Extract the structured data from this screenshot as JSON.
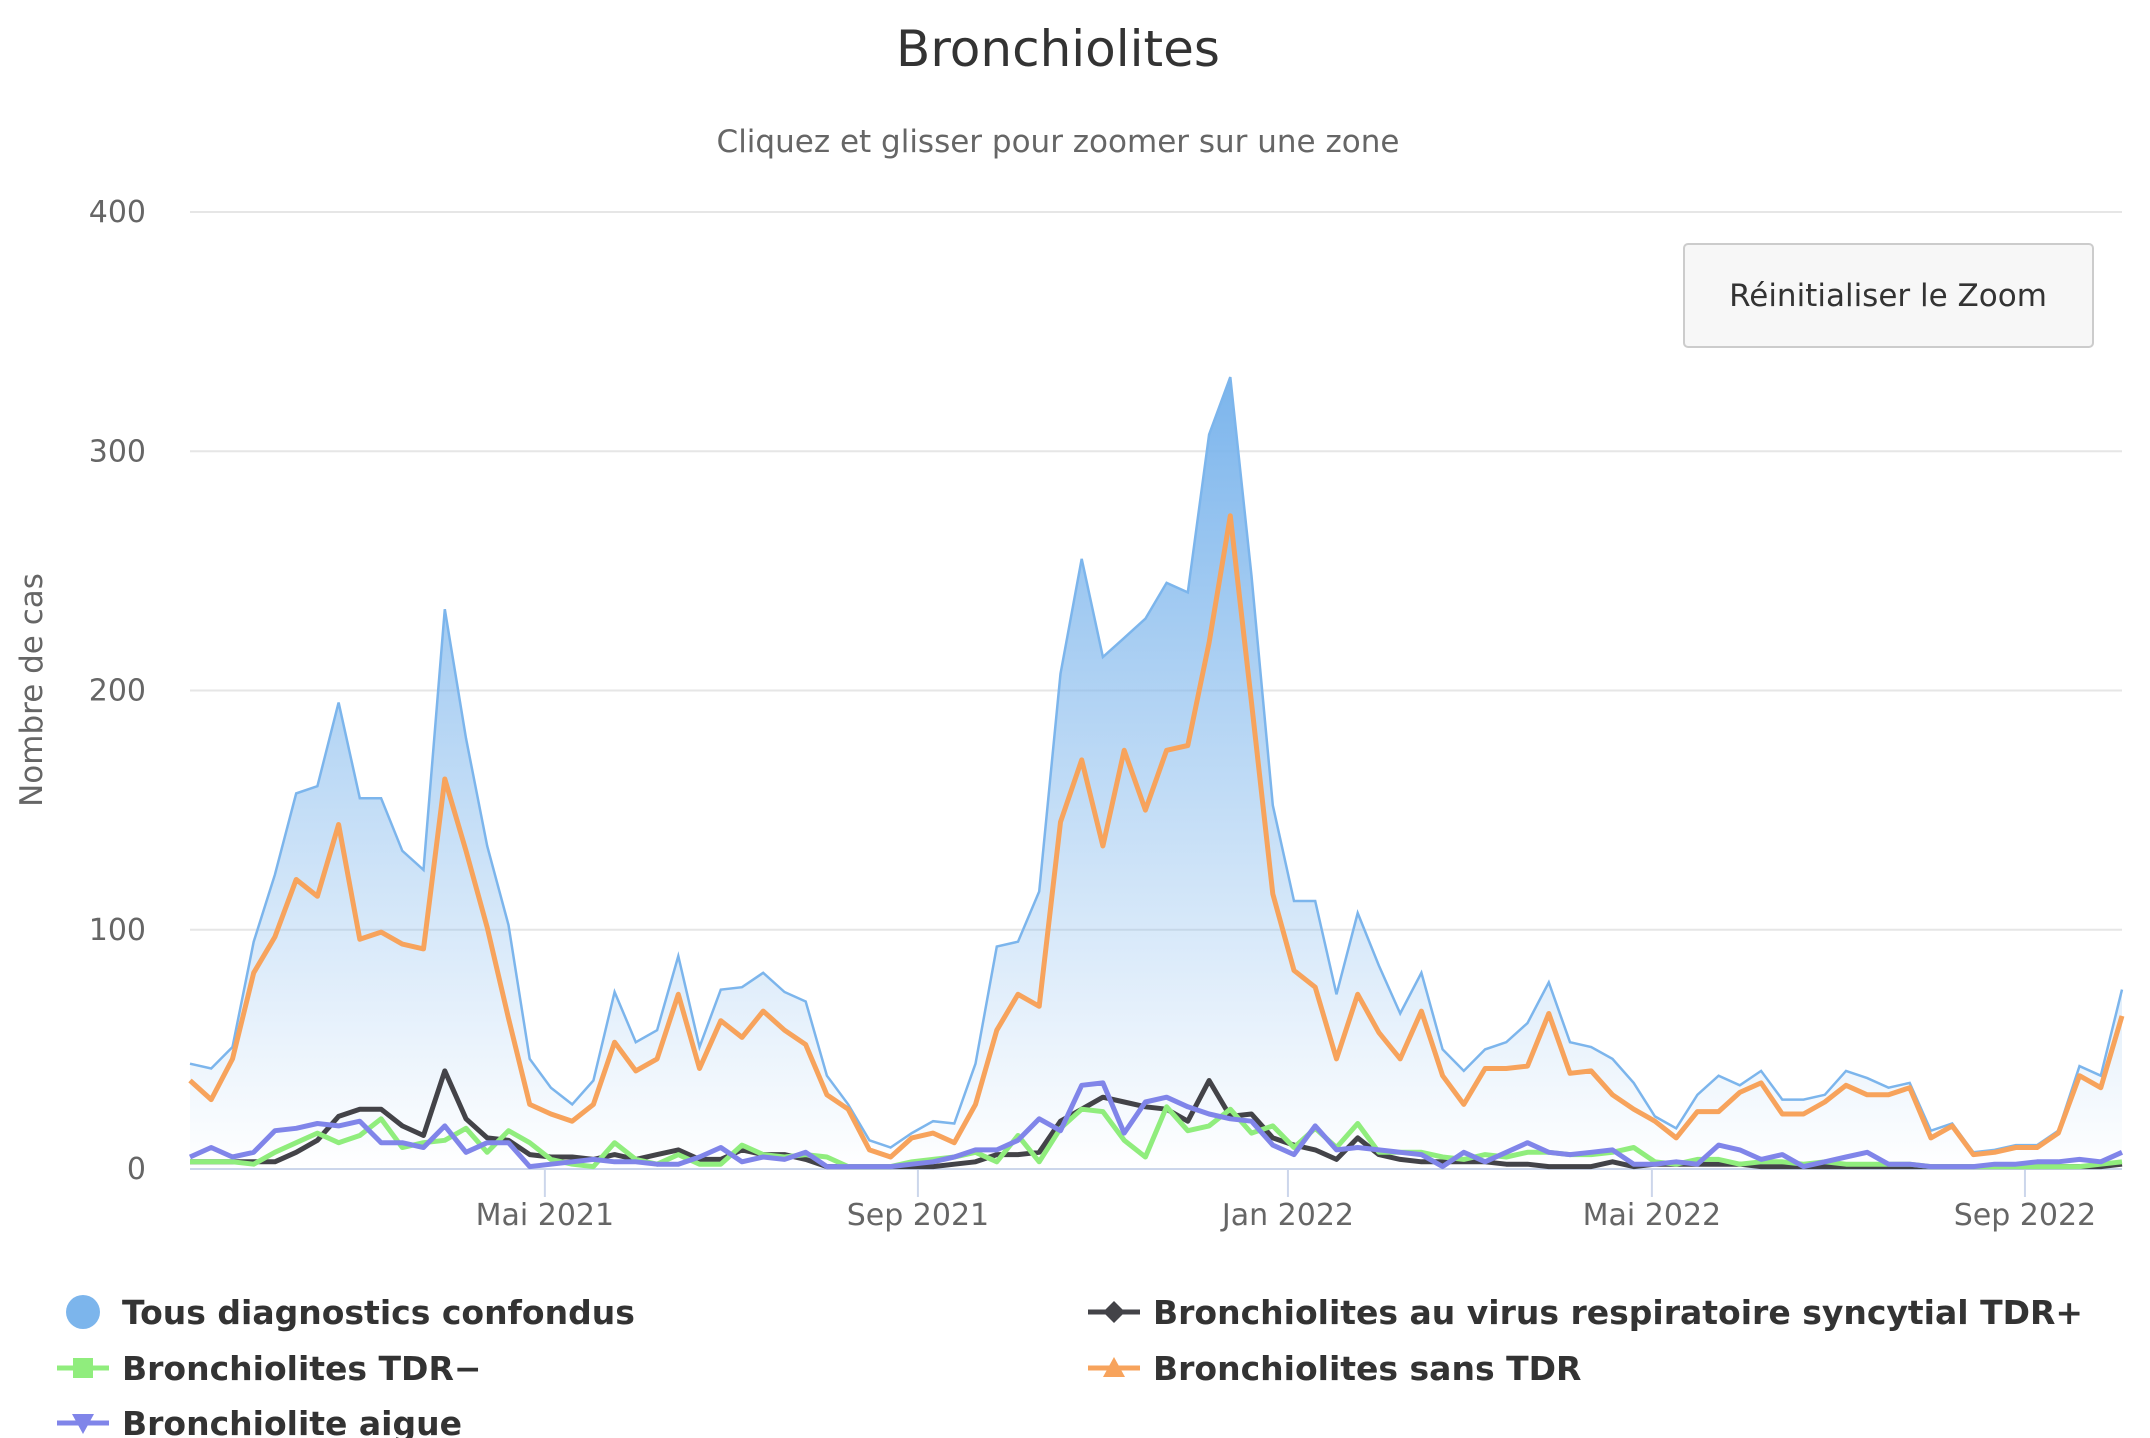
{
  "chart_data": {
    "type": "area",
    "title": "Bronchiolites",
    "subtitle": "Cliquez et glisser pour zoomer sur une zone",
    "ylabel": "Nombre de cas",
    "xlabel": "",
    "ylim": [
      0,
      400
    ],
    "yticks": [
      "0",
      "100",
      "200",
      "300",
      "400"
    ],
    "xticks": [
      {
        "label": "Mai 2021",
        "date": "2021-05-01"
      },
      {
        "label": "Sep 2021",
        "date": "2021-09-01"
      },
      {
        "label": "Jan 2022",
        "date": "2022-01-01"
      },
      {
        "label": "Mai 2022",
        "date": "2022-05-01"
      },
      {
        "label": "Sep 2022",
        "date": "2022-09-01"
      }
    ],
    "x_start": "2021-01-04",
    "x_interval": "weekly",
    "grid": true,
    "legend_position": "bottom",
    "series": [
      {
        "name": "Tous diagnostics confondus",
        "type": "area",
        "color": "#7cb5ec",
        "marker": "circle",
        "values": [
          44,
          42,
          51,
          95,
          123,
          157,
          160,
          195,
          155,
          155,
          133,
          125,
          234,
          180,
          135,
          102,
          46,
          34,
          27,
          37,
          74,
          53,
          58,
          89,
          51,
          75,
          76,
          82,
          74,
          70,
          39,
          27,
          12,
          9,
          15,
          20,
          19,
          44,
          93,
          95,
          116,
          207,
          255,
          214,
          222,
          230,
          245,
          241,
          307,
          331,
          248,
          152,
          112,
          112,
          73,
          107,
          85,
          65,
          82,
          50,
          41,
          50,
          53,
          61,
          78,
          53,
          51,
          46,
          36,
          22,
          17,
          31,
          39,
          35,
          41,
          29,
          29,
          31,
          41,
          38,
          34,
          36,
          16,
          19,
          7,
          8,
          10,
          10,
          16,
          43,
          39,
          75
        ]
      },
      {
        "name": "Bronchiolites au virus respiratoire syncytial TDR+",
        "type": "line",
        "color": "#434348",
        "marker": "diamond",
        "values": [
          3,
          3,
          3,
          3,
          3,
          7,
          12,
          22,
          25,
          25,
          18,
          14,
          41,
          21,
          13,
          12,
          6,
          5,
          5,
          4,
          6,
          4,
          6,
          8,
          4,
          4,
          8,
          6,
          6,
          4,
          1,
          1,
          1,
          1,
          1,
          1,
          2,
          3,
          6,
          6,
          7,
          20,
          25,
          30,
          28,
          26,
          25,
          20,
          37,
          22,
          23,
          13,
          10,
          8,
          4,
          13,
          6,
          4,
          3,
          3,
          3,
          3,
          2,
          2,
          1,
          1,
          1,
          3,
          1,
          2,
          2,
          2,
          2,
          2,
          1,
          1,
          1,
          1,
          1,
          1,
          1,
          1,
          1,
          1,
          1,
          1,
          1,
          1,
          1,
          1,
          1,
          2
        ]
      },
      {
        "name": "Bronchiolites TDR−",
        "type": "line",
        "color": "#90ed7d",
        "marker": "square",
        "values": [
          3,
          3,
          3,
          2,
          7,
          11,
          15,
          11,
          14,
          21,
          9,
          11,
          12,
          17,
          7,
          16,
          11,
          4,
          2,
          1,
          11,
          4,
          2,
          6,
          2,
          2,
          10,
          6,
          5,
          6,
          5,
          1,
          1,
          1,
          3,
          4,
          5,
          7,
          3,
          14,
          3,
          17,
          25,
          24,
          12,
          5,
          26,
          16,
          18,
          25,
          15,
          18,
          9,
          17,
          9,
          19,
          7,
          7,
          7,
          5,
          4,
          6,
          5,
          7,
          7,
          6,
          6,
          7,
          9,
          3,
          2,
          4,
          4,
          2,
          3,
          3,
          2,
          3,
          2,
          2,
          2,
          2,
          1,
          1,
          1,
          1,
          1,
          1,
          1,
          1,
          2,
          3
        ]
      },
      {
        "name": "Bronchiolites sans TDR",
        "type": "line",
        "color": "#f7a35c",
        "marker": "triangle",
        "values": [
          37,
          29,
          46,
          82,
          97,
          121,
          114,
          144,
          96,
          99,
          94,
          92,
          163,
          133,
          101,
          63,
          27,
          23,
          20,
          27,
          53,
          41,
          46,
          73,
          42,
          62,
          55,
          66,
          58,
          52,
          31,
          25,
          8,
          5,
          13,
          15,
          11,
          27,
          58,
          73,
          68,
          145,
          171,
          135,
          175,
          150,
          175,
          177,
          220,
          273,
          195,
          115,
          83,
          76,
          46,
          73,
          57,
          46,
          66,
          39,
          27,
          42,
          42,
          43,
          65,
          40,
          41,
          31,
          25,
          20,
          13,
          24,
          24,
          32,
          36,
          23,
          23,
          28,
          35,
          31,
          31,
          34,
          13,
          18,
          6,
          7,
          9,
          9,
          15,
          39,
          34,
          64
        ]
      },
      {
        "name": "Bronchiolite aigue",
        "type": "line",
        "color": "#8085e9",
        "marker": "triangle-down",
        "values": [
          5,
          9,
          5,
          7,
          16,
          17,
          19,
          18,
          20,
          11,
          11,
          9,
          18,
          7,
          11,
          11,
          1,
          2,
          3,
          4,
          3,
          3,
          2,
          2,
          5,
          9,
          3,
          5,
          4,
          7,
          1,
          1,
          1,
          1,
          2,
          3,
          5,
          8,
          8,
          12,
          21,
          16,
          35,
          36,
          15,
          28,
          30,
          26,
          23,
          21,
          20,
          10,
          6,
          18,
          8,
          9,
          8,
          7,
          6,
          1,
          7,
          3,
          7,
          11,
          7,
          6,
          7,
          8,
          2,
          2,
          3,
          2,
          10,
          8,
          4,
          6,
          1,
          3,
          5,
          7,
          2,
          2,
          1,
          1,
          1,
          2,
          2,
          3,
          3,
          4,
          3,
          7
        ]
      }
    ]
  },
  "reset_zoom_button": {
    "label": "Réinitialiser le Zoom"
  }
}
